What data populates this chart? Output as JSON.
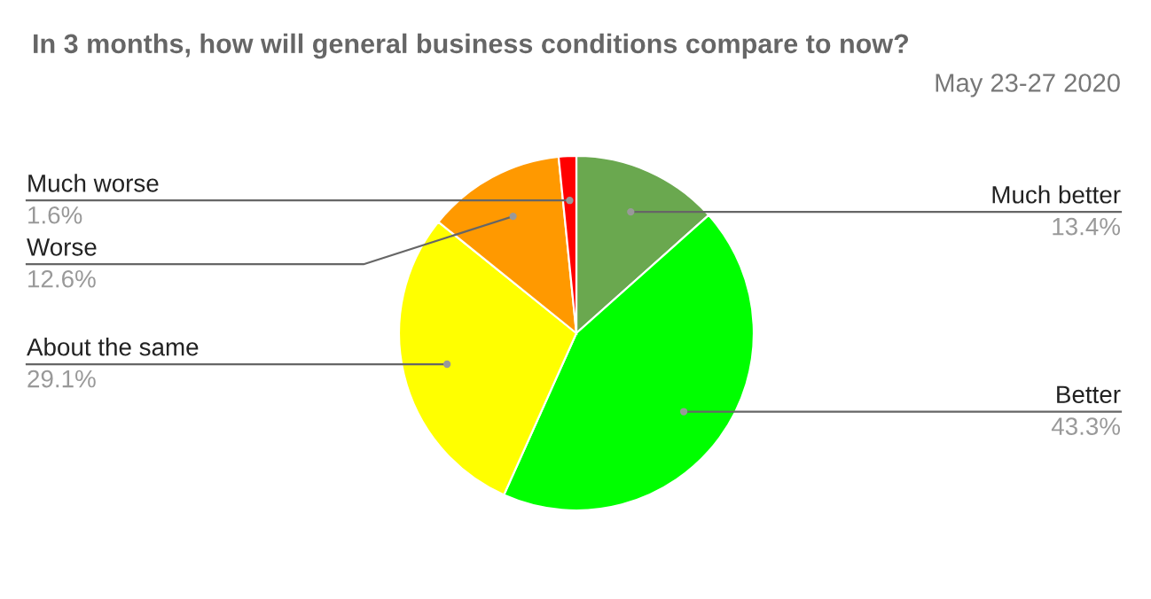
{
  "chart_data": {
    "type": "pie",
    "title": "In 3 months, how will general business conditions compare to now?",
    "subtitle": "May 23-27 2020",
    "categories": [
      "Much better",
      "Better",
      "About the same",
      "Worse",
      "Much worse"
    ],
    "values": [
      13.4,
      43.3,
      29.1,
      12.6,
      1.6
    ],
    "value_labels": [
      "13.4%",
      "43.3%",
      "29.1%",
      "12.6%",
      "1.6%"
    ],
    "colors": [
      "#6aa84f",
      "#00ff00",
      "#ffff00",
      "#ff9900",
      "#ff0000"
    ]
  }
}
